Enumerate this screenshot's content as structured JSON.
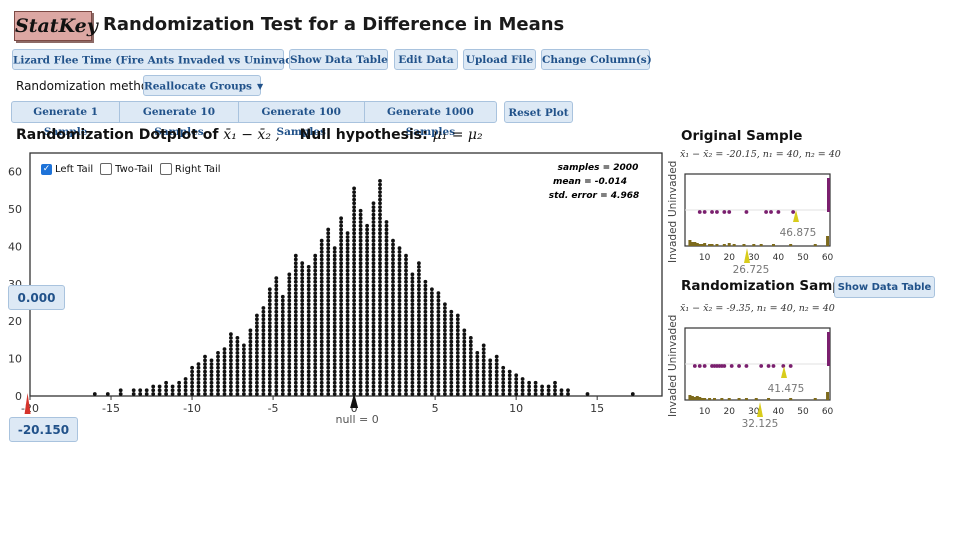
{
  "app": {
    "logo": "StatKey",
    "title": "Randomization Test for a Difference in Means"
  },
  "toolbar": {
    "dataset_label": "Lizard Flee Time (Fire Ants Invaded vs Uninvaded)",
    "show_data_table": "Show Data Table",
    "edit_data": "Edit Data",
    "upload_file": "Upload File",
    "change_columns": "Change Column(s)"
  },
  "method": {
    "label": "Randomization method",
    "value": "Reallocate Groups"
  },
  "generate": {
    "gen1": "Generate 1 Sample",
    "gen10": "Generate 10 Samples",
    "gen100": "Generate 100 Samples",
    "gen1000": "Generate 1000 Samples",
    "reset": "Reset Plot"
  },
  "plot": {
    "title_prefix": "Randomization Dotplot of ",
    "title_stat": "x̄₁ − x̄₂ ,",
    "title_hyp_prefix": "Null hypothesis: ",
    "title_hyp": "μ₁ = μ₂",
    "left_tail": "Left Tail",
    "two_tail": "Two-Tail",
    "right_tail": "Right Tail",
    "left_tail_checked": true,
    "samples": "samples = 2000",
    "mean": "mean = -0.014",
    "stderr": "std. error = 4.968",
    "null_label": "null = 0",
    "proportion_value": "0.000",
    "cutoff_value": "-20.150"
  },
  "chart_data": {
    "type": "scatter",
    "xlim": [
      -20,
      19
    ],
    "ylim": [
      0,
      65
    ],
    "xticks": [
      "-20",
      "-15",
      "-10",
      "-5",
      "0",
      "5",
      "10",
      "15"
    ],
    "xtick_values": [
      -20,
      -15,
      -10,
      -5,
      0,
      5,
      10,
      15
    ],
    "yticks": [
      "0",
      "10",
      "20",
      "30",
      "40",
      "50",
      "60"
    ],
    "ytick_values": [
      0,
      10,
      20,
      30,
      40,
      50,
      60
    ],
    "bins_x": [
      -16,
      -15.2,
      -14.4,
      -13.6,
      -13.2,
      -12.8,
      -12.4,
      -12,
      -11.6,
      -11.2,
      -10.8,
      -10.4,
      -10,
      -9.6,
      -9.2,
      -8.8,
      -8.4,
      -8,
      -7.6,
      -7.2,
      -6.8,
      -6.4,
      -6,
      -5.6,
      -5.2,
      -4.8,
      -4.4,
      -4,
      -3.6,
      -3.2,
      -2.8,
      -2.4,
      -2,
      -1.6,
      -1.2,
      -0.8,
      -0.4,
      0,
      0.4,
      0.8,
      1.2,
      1.6,
      2,
      2.4,
      2.8,
      3.2,
      3.6,
      4,
      4.4,
      4.8,
      5.2,
      5.6,
      6,
      6.4,
      6.8,
      7.2,
      7.6,
      8,
      8.4,
      8.8,
      9.2,
      9.6,
      10,
      10.4,
      10.8,
      11.2,
      11.6,
      12,
      12.4,
      12.8,
      13.2,
      14.4,
      17.2
    ],
    "bins_count": [
      1,
      1,
      2,
      2,
      2,
      2,
      3,
      3,
      4,
      3,
      4,
      5,
      8,
      9,
      11,
      10,
      12,
      13,
      17,
      16,
      14,
      18,
      22,
      24,
      29,
      32,
      27,
      33,
      38,
      36,
      35,
      38,
      42,
      45,
      40,
      48,
      44,
      56,
      50,
      46,
      52,
      58,
      47,
      42,
      40,
      38,
      33,
      36,
      31,
      29,
      28,
      25,
      23,
      22,
      18,
      16,
      12,
      14,
      10,
      11,
      8,
      7,
      6,
      5,
      4,
      4,
      3,
      3,
      4,
      2,
      2,
      1,
      1
    ]
  },
  "original": {
    "title": "Original Sample",
    "stat": "x̄₁ − x̄₂ = -20.15, n₁ = 40, n₂ = 40",
    "ylabel_a": "Invaded",
    "ylabel_b": "Uninvaded",
    "mean_top": "46.875",
    "mean_bottom": "26.725",
    "xticks": [
      "10",
      "20",
      "30",
      "40",
      "50",
      "60"
    ]
  },
  "randomization": {
    "title": "Randomization Sample",
    "show_data_table": "Show Data Table",
    "stat": "x̄₁ − x̄₂ = -9.35, n₁ = 40, n₂ = 40",
    "ylabel_a": "Invaded",
    "ylabel_b": "Uninvaded",
    "mean_top": "41.475",
    "mean_bottom": "32.125",
    "xticks": [
      "10",
      "20",
      "30",
      "40",
      "50",
      "60"
    ]
  },
  "colors": {
    "button_bg": "#dde9f5",
    "button_text": "#21528a",
    "purple": "#7a1f6e",
    "olive": "#7d6a1c",
    "marker_yellow": "#d8cc1c",
    "tail_red": "#d6332b"
  }
}
